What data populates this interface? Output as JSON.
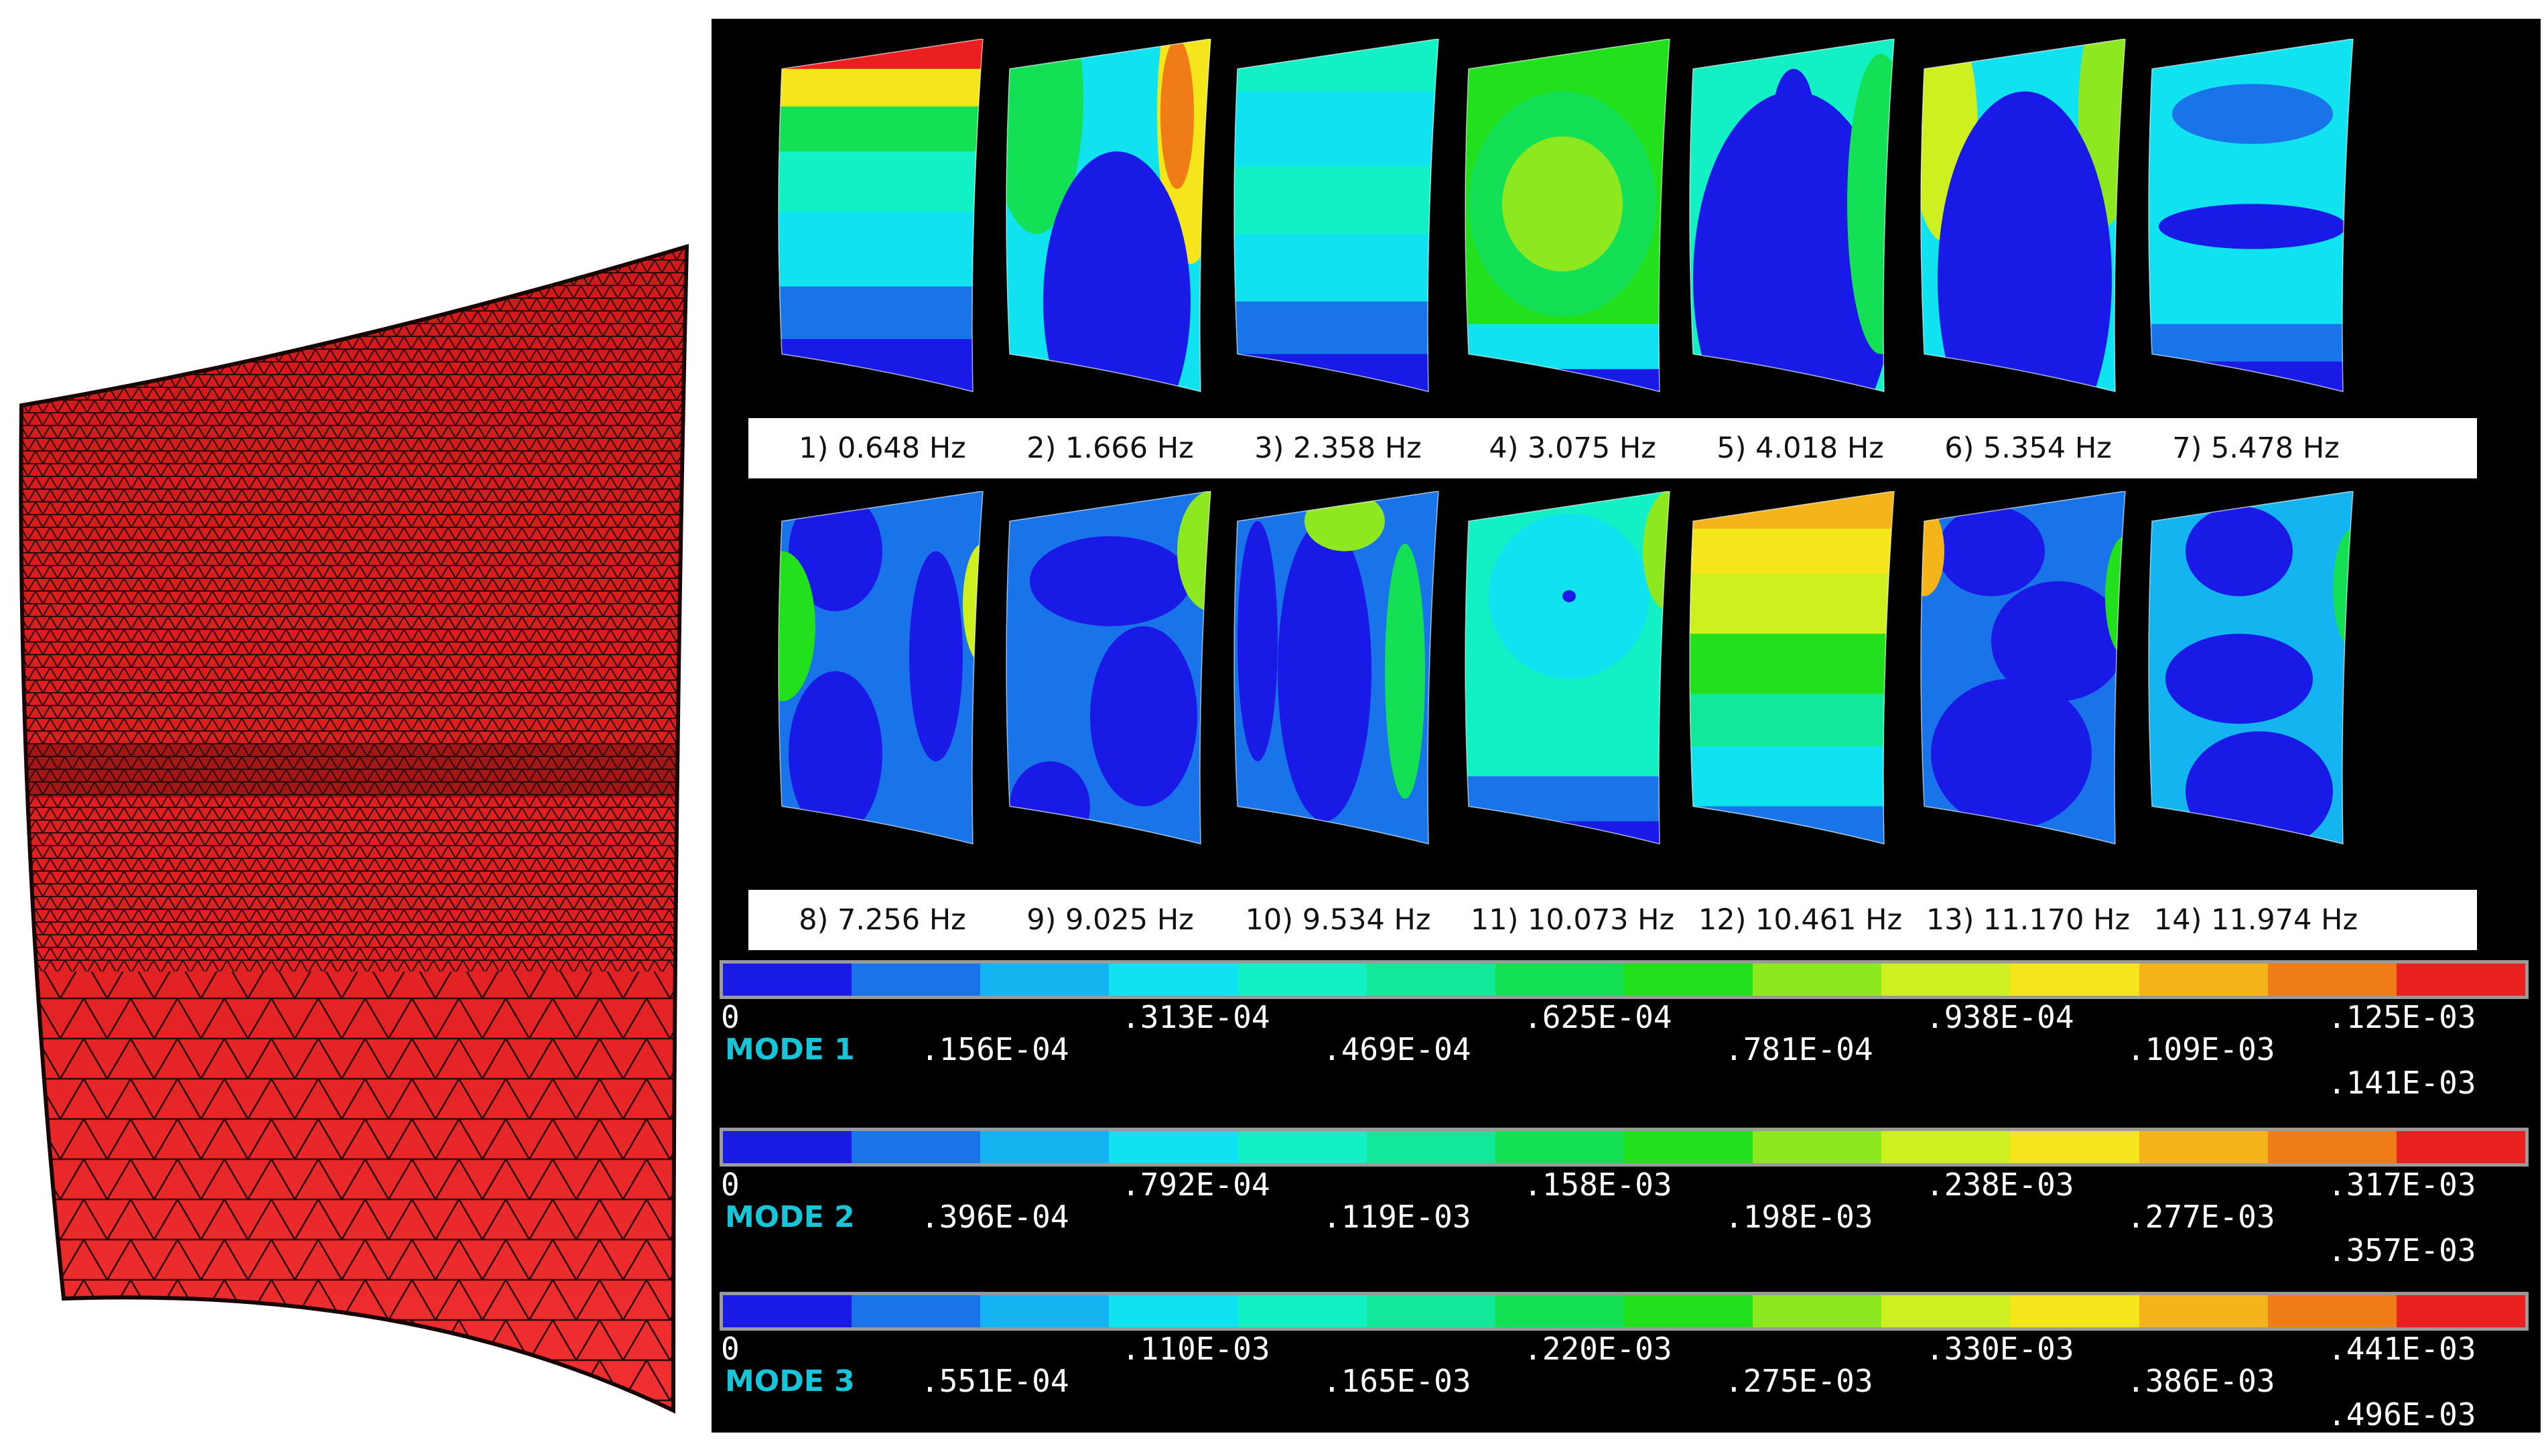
{
  "mesh": {
    "fill_color": "#e52222",
    "line_color": "#1a0808"
  },
  "colormap": [
    "#1a1ae6",
    "#1874e8",
    "#14b4f0",
    "#10e2f0",
    "#12f0c4",
    "#12e89a",
    "#14e055",
    "#22e01c",
    "#8ee820",
    "#cef020",
    "#f5e61c",
    "#f5b41a",
    "#f07c18",
    "#ea2020"
  ],
  "modes": [
    {
      "caption": "1) 0.648 Hz"
    },
    {
      "caption": "2) 1.666 Hz"
    },
    {
      "caption": "3) 2.358 Hz"
    },
    {
      "caption": "4) 3.075 Hz"
    },
    {
      "caption": "5) 4.018 Hz"
    },
    {
      "caption": "6) 5.354 Hz"
    },
    {
      "caption": "7) 5.478 Hz"
    },
    {
      "caption": "8) 7.256 Hz"
    },
    {
      "caption": "9) 9.025 Hz"
    },
    {
      "caption": "10) 9.534 Hz"
    },
    {
      "caption": "11) 10.073 Hz"
    },
    {
      "caption": "12) 10.461 Hz"
    },
    {
      "caption": "13) 11.170 Hz"
    },
    {
      "caption": "14) 11.974 Hz"
    }
  ],
  "legends": [
    {
      "name": "MODE 1",
      "zero": "0",
      "ticks_upper": [
        ".313E-04",
        ".625E-04",
        ".938E-04",
        ".125E-03"
      ],
      "ticks_lower": [
        ".156E-04",
        ".469E-04",
        ".781E-04",
        ".109E-03"
      ],
      "max": ".141E-03"
    },
    {
      "name": "MODE 2",
      "zero": "0",
      "ticks_upper": [
        ".792E-04",
        ".158E-03",
        ".238E-03",
        ".317E-03"
      ],
      "ticks_lower": [
        ".396E-04",
        ".119E-03",
        ".198E-03",
        ".277E-03"
      ],
      "max": ".357E-03"
    },
    {
      "name": "MODE 3",
      "zero": "0",
      "ticks_upper": [
        ".110E-03",
        ".220E-03",
        ".330E-03",
        ".441E-03"
      ],
      "ticks_lower": [
        ".551E-04",
        ".165E-03",
        ".275E-03",
        ".386E-03"
      ],
      "max": ".496E-03"
    }
  ]
}
